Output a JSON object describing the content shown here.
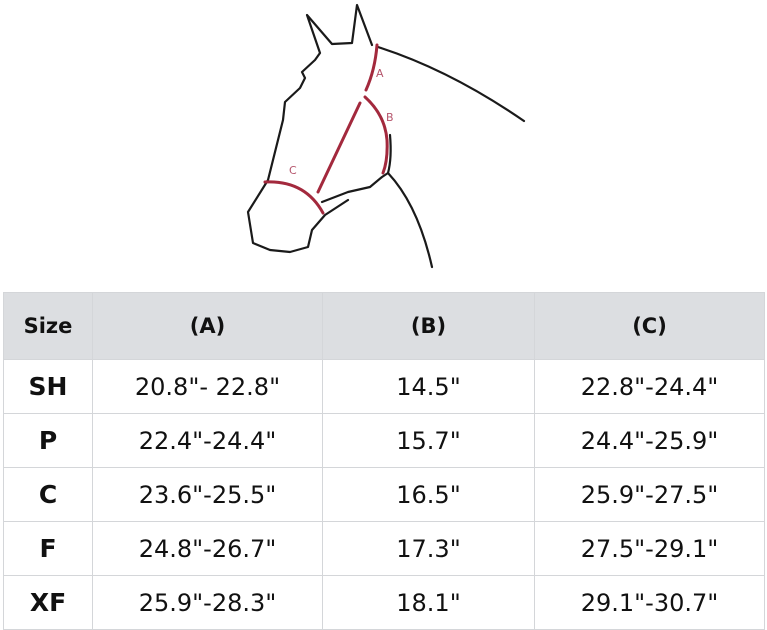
{
  "diagram": {
    "labels": {
      "a": "A",
      "b": "B",
      "c": "C"
    },
    "colors": {
      "outline": "#1a1a1a",
      "measure": "#a3293d",
      "label": "#b5556c"
    }
  },
  "table": {
    "headers": [
      "Size",
      "(A)",
      "(B)",
      "(C)"
    ],
    "rows": [
      [
        "SH",
        "20.8\"- 22.8\"",
        "14.5\"",
        "22.8\"-24.4\""
      ],
      [
        "P",
        "22.4\"-24.4\"",
        "15.7\"",
        "24.4\"-25.9\""
      ],
      [
        "C",
        "23.6\"-25.5\"",
        "16.5\"",
        "25.9\"-27.5\""
      ],
      [
        "F",
        "24.8\"-26.7\"",
        "17.3\"",
        "27.5\"-29.1\""
      ],
      [
        "XF",
        "25.9\"-28.3\"",
        "18.1\"",
        "29.1\"-30.7\""
      ]
    ],
    "colors": {
      "header_bg": "#dcdee1",
      "border": "#d4d6d9"
    }
  }
}
